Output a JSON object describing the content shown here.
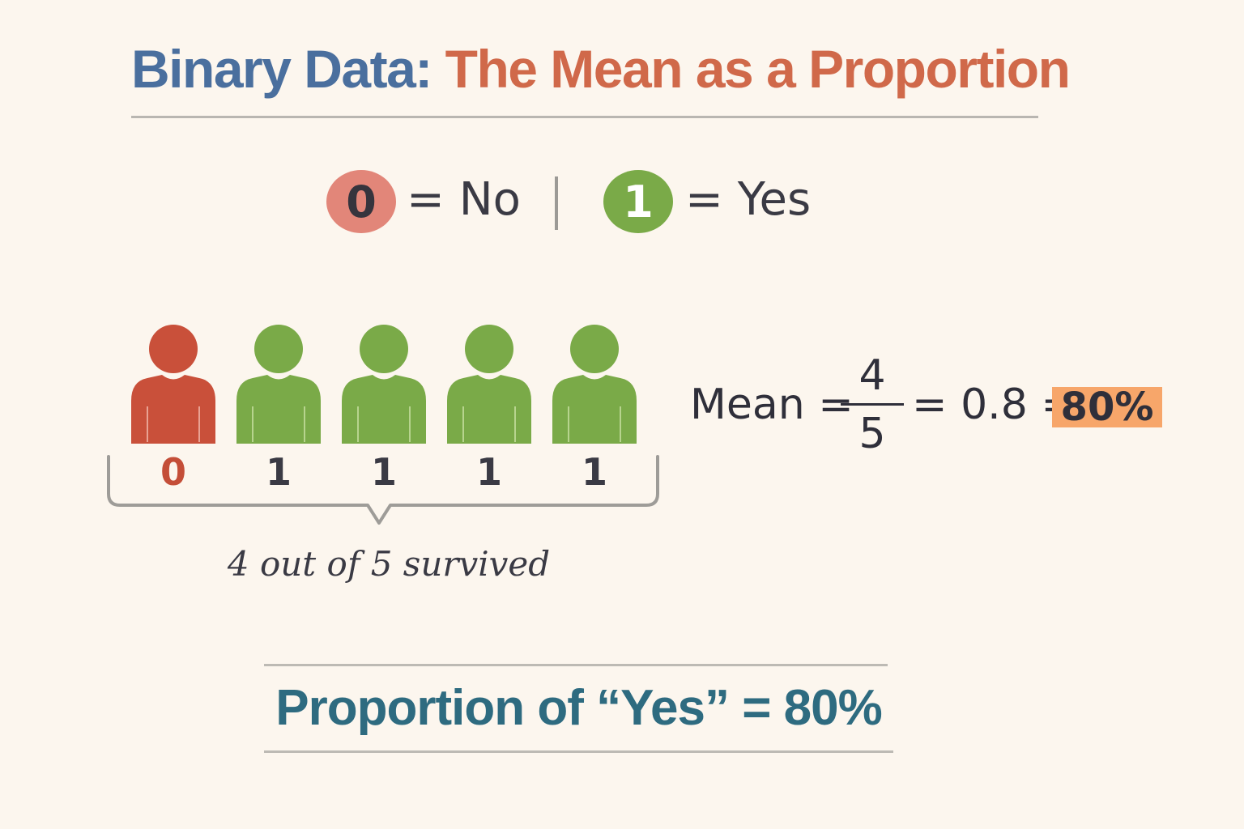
{
  "title": {
    "part1": "Binary Data:",
    "part2": "The Mean as a Proportion"
  },
  "legend": {
    "no": {
      "value": "0",
      "label": "= No",
      "color": "#e28679"
    },
    "yes": {
      "value": "1",
      "label": "= Yes",
      "color": "#7aaa48"
    }
  },
  "people": [
    {
      "value": "0",
      "status": "no"
    },
    {
      "value": "1",
      "status": "yes"
    },
    {
      "value": "1",
      "status": "yes"
    },
    {
      "value": "1",
      "status": "yes"
    },
    {
      "value": "1",
      "status": "yes"
    }
  ],
  "colors": {
    "no_person": "#c9503a",
    "yes_person": "#7aaa48"
  },
  "caption": "4 out of 5 survived",
  "equation": {
    "label": "Mean =",
    "numerator": "4",
    "denominator": "5",
    "decimal_part": "= 0.8 =",
    "result": "80%"
  },
  "summary": "Proportion of “Yes” = 80%"
}
